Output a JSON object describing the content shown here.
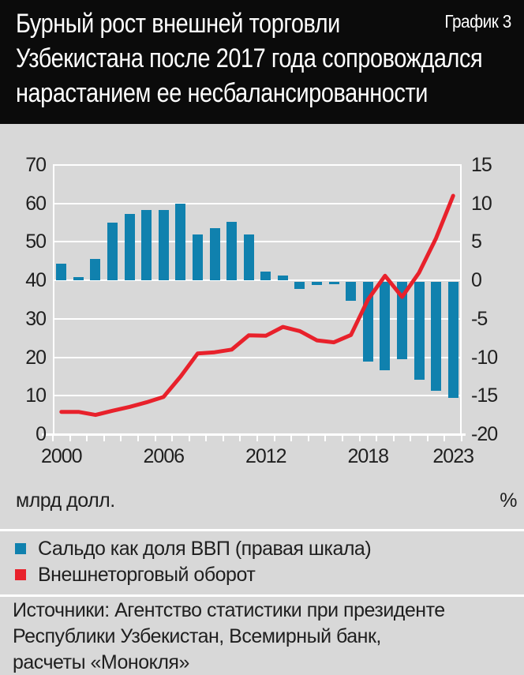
{
  "header": {
    "title": "Бурный рост внешней торговли\nУзбекистана после 2017 года сопровождался\nнарастанием ее несбалансированности",
    "corner_label": "График 3"
  },
  "chart_data": {
    "type": "bar+line",
    "x": [
      2000,
      2001,
      2002,
      2003,
      2004,
      2005,
      2006,
      2007,
      2008,
      2009,
      2010,
      2011,
      2012,
      2013,
      2014,
      2015,
      2016,
      2017,
      2018,
      2019,
      2020,
      2021,
      2022,
      2023
    ],
    "series": [
      {
        "name": "Сальдо как доля ВВП (правая шкала)",
        "type": "bar",
        "axis": "right",
        "color": "#1081ae",
        "values": [
          2.2,
          0.4,
          2.8,
          7.5,
          8.6,
          9.1,
          9.2,
          10.0,
          6.0,
          6.8,
          7.6,
          6.0,
          1.1,
          0.6,
          -0.9,
          -0.4,
          -0.3,
          -2.5,
          -10.4,
          -11.5,
          -10.0,
          -12.7,
          -14.1,
          -15.1
        ]
      },
      {
        "name": "Внешнеторговый оборот",
        "type": "line",
        "axis": "left",
        "color": "#e8212b",
        "values": [
          5.8,
          5.8,
          5.0,
          6.1,
          7.1,
          8.3,
          9.7,
          15.0,
          21.0,
          21.3,
          22.0,
          25.7,
          25.6,
          27.9,
          26.8,
          24.4,
          23.9,
          25.8,
          35.0,
          41.2,
          35.7,
          42.0,
          51.0,
          62.0
        ]
      }
    ],
    "left_axis": {
      "label": "млрд долл.",
      "min": 0,
      "max": 70,
      "ticks": [
        0,
        10,
        20,
        30,
        40,
        50,
        60,
        70
      ]
    },
    "right_axis": {
      "label": "%",
      "min": -20,
      "max": 15,
      "ticks": [
        -20,
        -15,
        -10,
        -5,
        0,
        5,
        10,
        15
      ]
    },
    "x_tick_labels": [
      "2000",
      "2006",
      "2012",
      "2018",
      "2023"
    ],
    "grid": true,
    "legend_position": "bottom"
  },
  "legend": {
    "items": [
      {
        "label": "Сальдо как доля ВВП (правая шкала)",
        "color": "#1081ae"
      },
      {
        "label": "Внешнеторговый оборот",
        "color": "#e8212b"
      }
    ]
  },
  "source": {
    "text": "Источники: Агентство статистики при президенте\nРеспублики Узбекистан, Всемирный банк,\nрасчеты «Монокля»"
  }
}
